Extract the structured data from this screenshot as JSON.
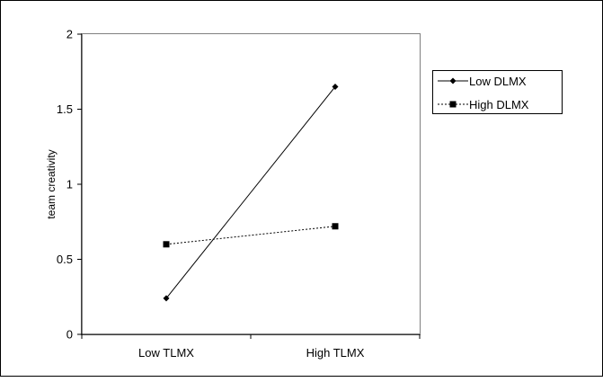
{
  "chart_data": {
    "type": "line",
    "title": "",
    "xlabel": "",
    "ylabel": "team   creativity",
    "categories": [
      "Low TLMX",
      "High TLMX"
    ],
    "ylim": [
      0,
      2
    ],
    "yticks": [
      0,
      0.5,
      1,
      1.5,
      2
    ],
    "ytick_labels": [
      "0",
      "0.5",
      "1",
      "1.5",
      "2"
    ],
    "grid": false,
    "legend_position": "right",
    "series": [
      {
        "name": "Low DLMX",
        "values": [
          0.24,
          1.65
        ],
        "marker": "diamond",
        "line_style": "solid",
        "color": "#000000"
      },
      {
        "name": "High DLMX",
        "values": [
          0.6,
          0.72
        ],
        "marker": "square",
        "line_style": "dotted",
        "color": "#000000"
      }
    ]
  }
}
